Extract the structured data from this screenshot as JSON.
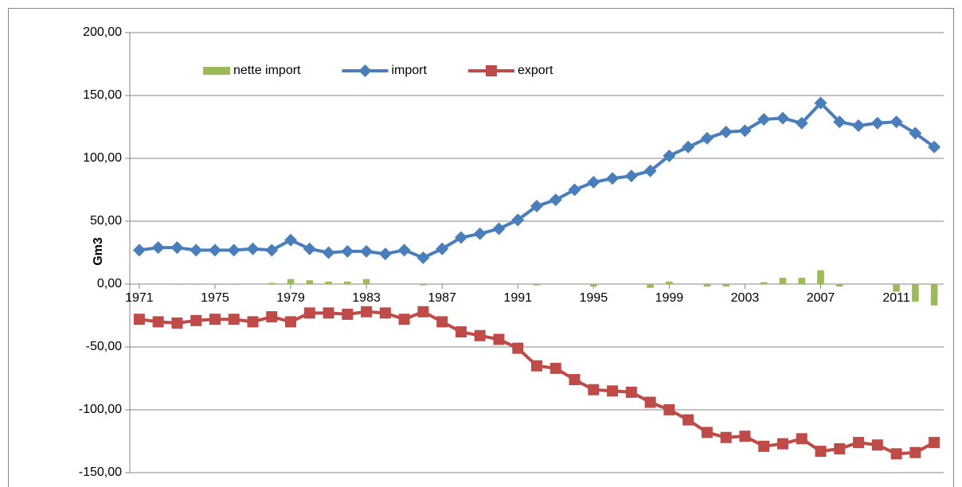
{
  "chart_data": {
    "type": "combo",
    "y_label": "Gm3",
    "x": [
      1971,
      1972,
      1973,
      1974,
      1975,
      1976,
      1977,
      1978,
      1979,
      1980,
      1981,
      1982,
      1983,
      1984,
      1985,
      1986,
      1987,
      1988,
      1989,
      1990,
      1991,
      1992,
      1993,
      1994,
      1995,
      1996,
      1997,
      1998,
      1999,
      2000,
      2001,
      2002,
      2003,
      2004,
      2005,
      2006,
      2007,
      2008,
      2009,
      2010,
      2011,
      2012,
      2013
    ],
    "xlim": [
      1970.5,
      2013.5
    ],
    "xticks": [
      1971,
      1975,
      1979,
      1983,
      1987,
      1991,
      1995,
      1999,
      2003,
      2007,
      2011
    ],
    "ylim": [
      -150,
      200
    ],
    "yticks": [
      {
        "value": -150,
        "label": "-150,00"
      },
      {
        "value": -100,
        "label": "-100,00"
      },
      {
        "value": -50,
        "label": "-50,00"
      },
      {
        "value": 0,
        "label": "0,00"
      },
      {
        "value": 50,
        "label": "50,00"
      },
      {
        "value": 100,
        "label": "100,00"
      },
      {
        "value": 150,
        "label": "150,00"
      },
      {
        "value": 200,
        "label": "200,00"
      }
    ],
    "grid": true,
    "legend": "top-left",
    "series": [
      {
        "name": "nette import",
        "type": "bar",
        "color": "#9bbb59",
        "values": [
          0,
          0,
          -0.5,
          -0.5,
          -0.5,
          -0.5,
          0,
          1,
          4,
          3,
          2,
          2,
          4,
          0,
          0,
          -1,
          -0.5,
          0,
          0,
          0,
          0,
          -1,
          0,
          0,
          -2,
          0,
          0,
          -3,
          2,
          0,
          -2,
          -2,
          0,
          1.5,
          5,
          5,
          11,
          -2,
          0,
          0,
          -6,
          -14,
          -17
        ]
      },
      {
        "name": "import",
        "type": "line",
        "marker": "diamond",
        "color": "#4a7ebb",
        "values": [
          27,
          29,
          29,
          27,
          27,
          27,
          28,
          27,
          35,
          28,
          25,
          26,
          26,
          24,
          27,
          21,
          28,
          37,
          40,
          44,
          51,
          62,
          67,
          75,
          81,
          84,
          86,
          90,
          102,
          109,
          116,
          121,
          122,
          131,
          132,
          128,
          144,
          129,
          126,
          128,
          129,
          120,
          109
        ]
      },
      {
        "name": "export",
        "type": "line",
        "marker": "square",
        "color": "#be4b48",
        "values": [
          -28,
          -30,
          -31,
          -29,
          -28,
          -28,
          -30,
          -26,
          -30,
          -23,
          -23,
          -24,
          -22,
          -23,
          -28,
          -22,
          -30,
          -38,
          -41,
          -44,
          -51,
          -65,
          -67,
          -76,
          -84,
          -85,
          -86,
          -94,
          -100,
          -108,
          -118,
          -122,
          -121,
          -129,
          -127,
          -123,
          -133,
          -131,
          -126,
          -128,
          -135,
          -134,
          -126
        ]
      }
    ]
  }
}
